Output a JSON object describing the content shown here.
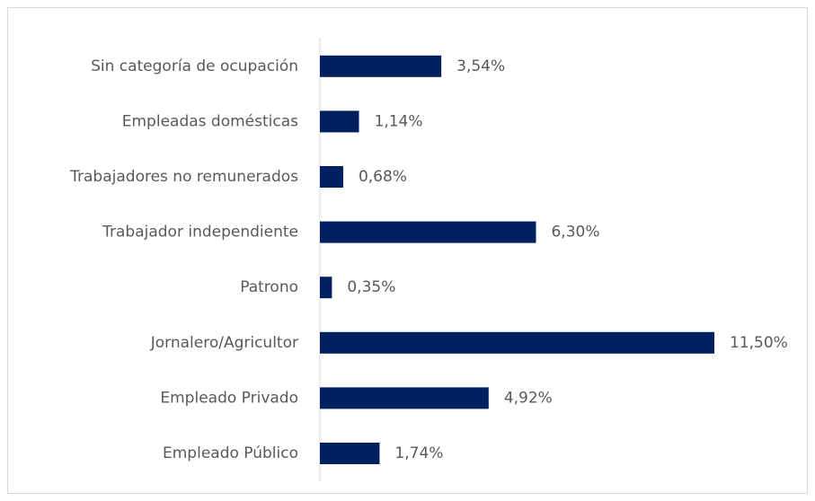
{
  "chart_data": {
    "type": "bar",
    "orientation": "horizontal",
    "categories": [
      "Sin categoría de ocupación",
      "Empleadas domésticas",
      "Trabajadores no remunerados",
      "Trabajador independiente",
      "Patrono",
      "Jornalero/Agricultor",
      "Empleado Privado",
      "Empleado Público"
    ],
    "values": [
      3.54,
      1.14,
      0.68,
      6.3,
      0.35,
      11.5,
      4.92,
      1.74
    ],
    "value_labels": [
      "3,54%",
      "1,14%",
      "0,68%",
      "6,30%",
      "0,35%",
      "11,50%",
      "4,92%",
      "1,74%"
    ],
    "color": "#002060"
  }
}
